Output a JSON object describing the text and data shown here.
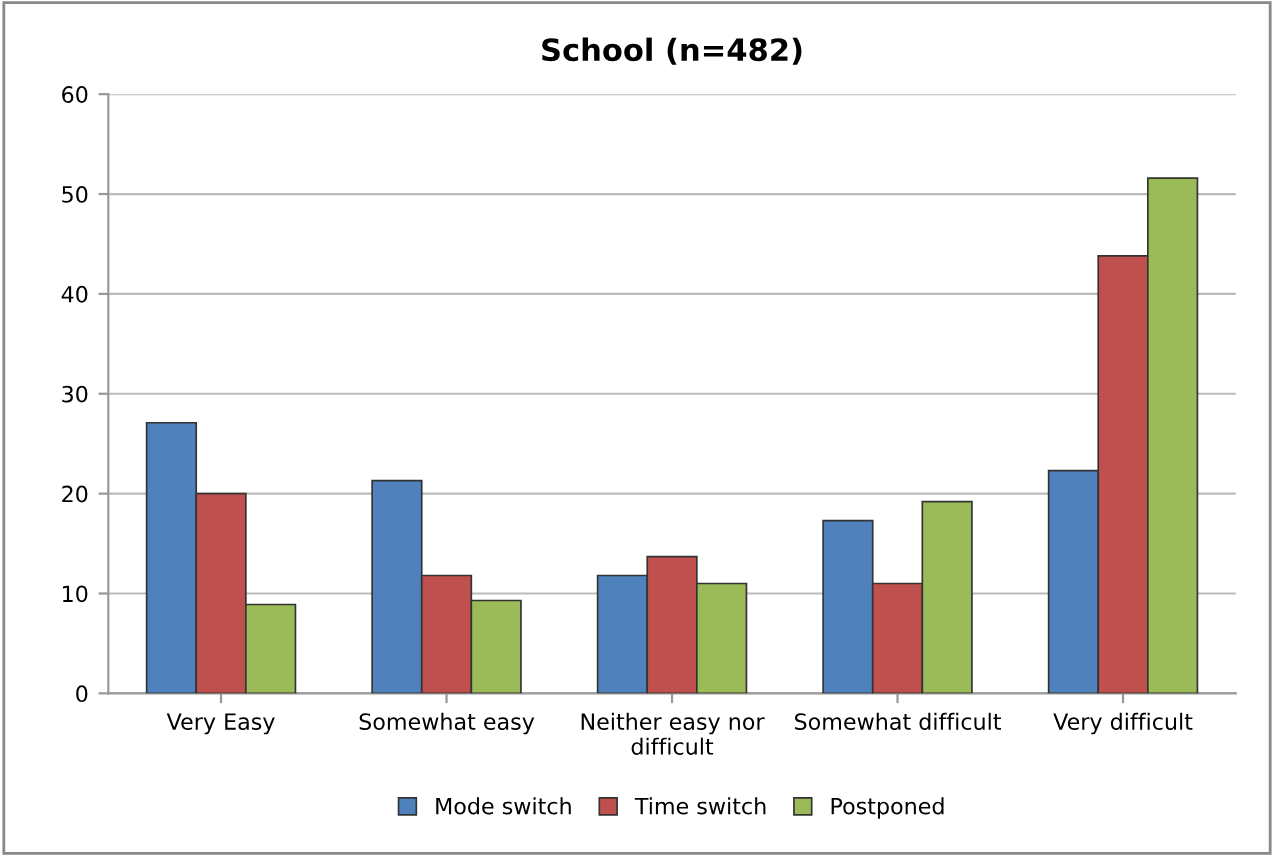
{
  "chart_data": {
    "type": "bar",
    "title": "School (n=482)",
    "categories": [
      "Very Easy",
      "Somewhat easy",
      "Neither easy nor\ndifficult",
      "Somewhat difficult",
      "Very difficult"
    ],
    "series": [
      {
        "name": "Mode switch",
        "color": "#4f81bd",
        "values": [
          27.1,
          21.3,
          11.8,
          17.3,
          22.3
        ]
      },
      {
        "name": "Time switch",
        "color": "#c0504d",
        "values": [
          20.0,
          11.8,
          13.7,
          11.0,
          43.8
        ]
      },
      {
        "name": "Postponed",
        "color": "#9bbb59",
        "values": [
          8.9,
          9.3,
          11.0,
          19.2,
          51.6
        ]
      }
    ],
    "ylim": [
      0,
      60
    ],
    "yticks": [
      0,
      10,
      20,
      30,
      40,
      50,
      60
    ],
    "grid": "y",
    "legend": "bottom"
  }
}
